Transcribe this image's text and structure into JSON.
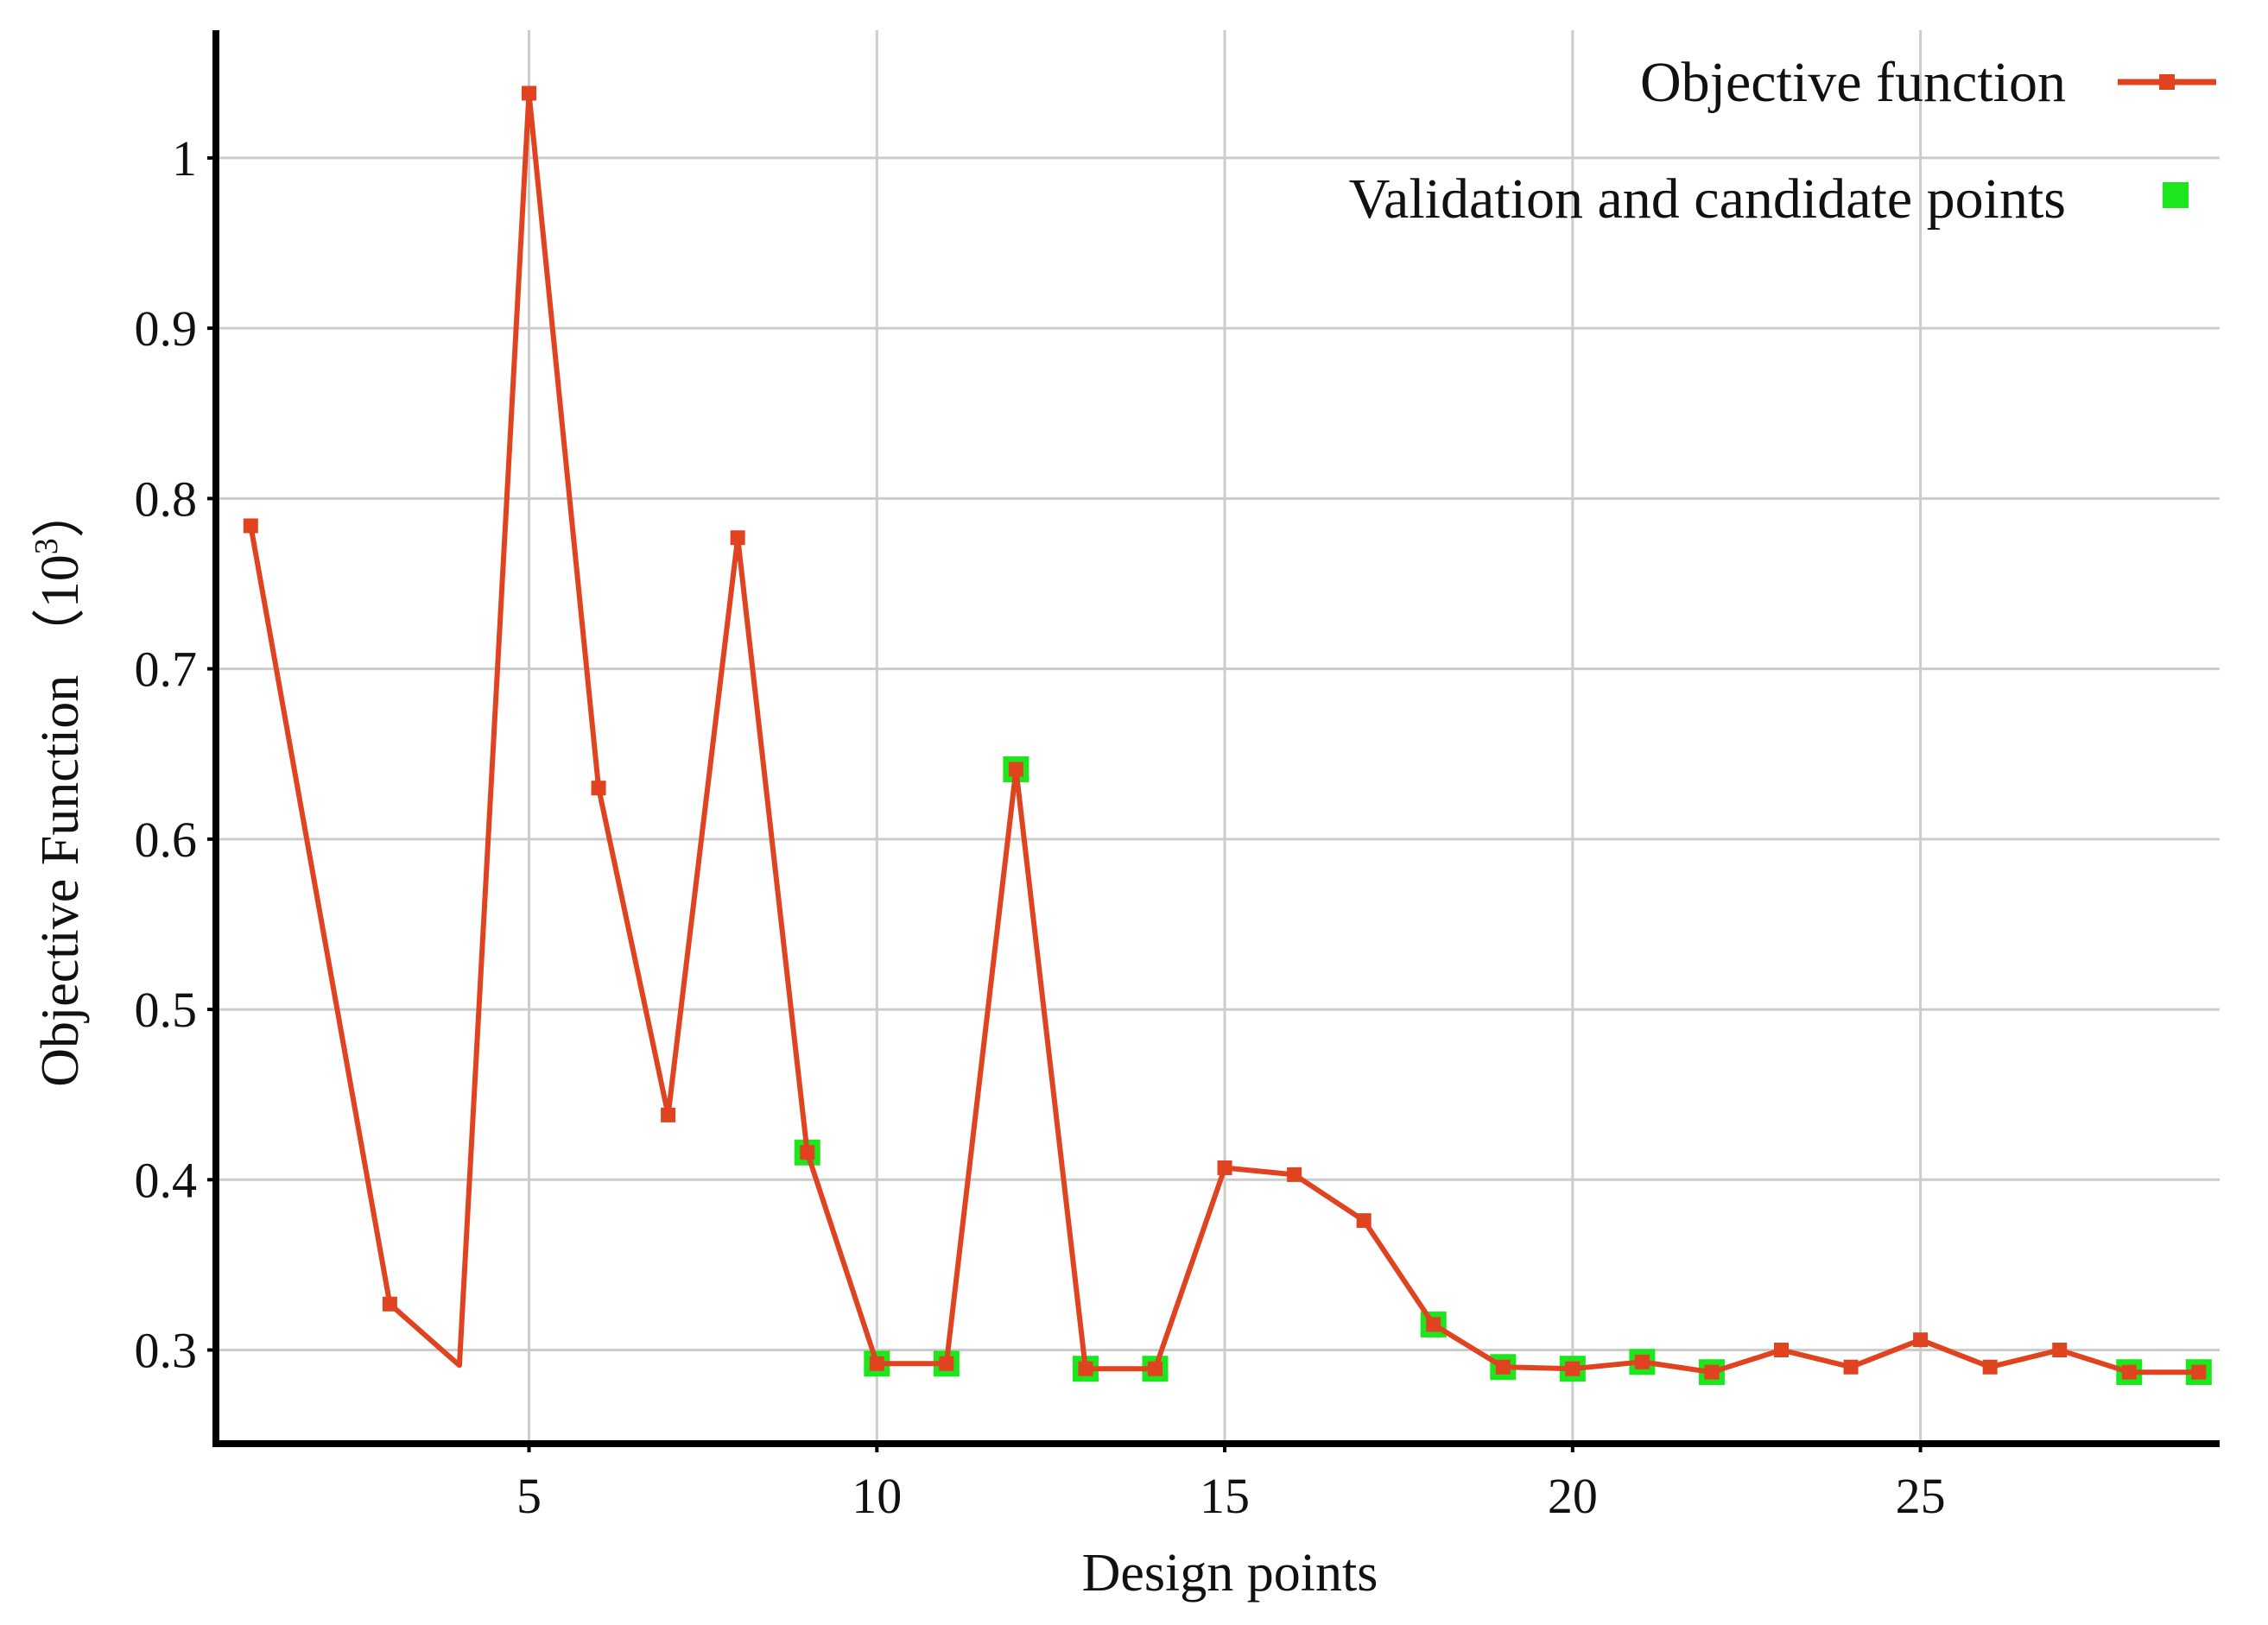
{
  "chart_data": {
    "type": "line",
    "xlabel": "Design points",
    "ylabel": "Objective Function （10",
    "ylabel_sup": "3",
    "ylabel_close": "）",
    "xlim": [
      0.5,
      29.3
    ],
    "ylim": [
      0.245,
      1.075
    ],
    "xticks": [
      5,
      10,
      15,
      20,
      25
    ],
    "yticks": [
      0.3,
      0.4,
      0.5,
      0.6,
      0.7,
      0.8,
      0.9,
      1
    ],
    "ytick_labels": [
      "0.3",
      "0.4",
      "0.5",
      "0.6",
      "0.7",
      "0.8",
      "0.9",
      "1"
    ],
    "grid": true,
    "legend_position": "top-right",
    "colors": {
      "line": "#e0431f",
      "highlight": "#1ee61e",
      "grid": "#cccccc",
      "axis": "#000000"
    },
    "series": [
      {
        "name": "Objective function",
        "style": "line-square",
        "x": [
          1,
          3,
          4,
          5,
          6,
          7,
          8,
          9,
          10,
          11,
          12,
          13,
          14,
          15,
          16,
          17,
          18,
          19,
          20,
          21,
          22,
          23,
          24,
          25,
          26,
          27,
          28,
          29
        ],
        "values": [
          0.784,
          0.327,
          0.291,
          1.038,
          0.63,
          0.438,
          0.777,
          0.416,
          0.292,
          0.292,
          0.641,
          0.289,
          0.289,
          0.407,
          0.403,
          0.376,
          0.315,
          0.29,
          0.289,
          0.293,
          0.287,
          0.3,
          0.29,
          0.306,
          0.29,
          0.3,
          0.287,
          0.287
        ],
        "markers": [
          true,
          true,
          false,
          true,
          true,
          true,
          true,
          true,
          true,
          true,
          true,
          true,
          true,
          true,
          true,
          true,
          true,
          true,
          true,
          true,
          true,
          true,
          true,
          true,
          true,
          true,
          true,
          true
        ]
      },
      {
        "name": "Validation and candidate points",
        "style": "square",
        "x": [
          9,
          10,
          11,
          12,
          13,
          14,
          18,
          19,
          20,
          21,
          22,
          28,
          29
        ],
        "values": [
          0.416,
          0.292,
          0.292,
          0.641,
          0.289,
          0.289,
          0.315,
          0.29,
          0.289,
          0.293,
          0.287,
          0.287,
          0.287
        ]
      }
    ]
  }
}
